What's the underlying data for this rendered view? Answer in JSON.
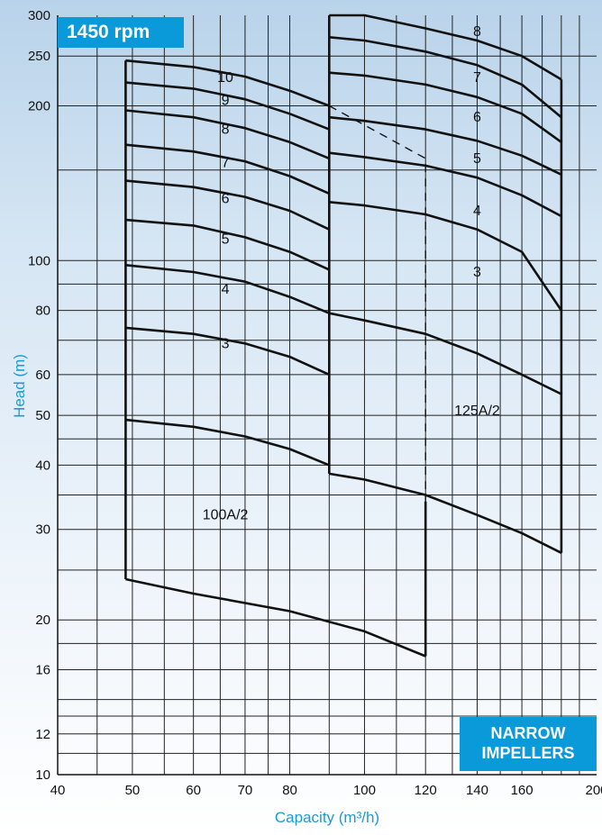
{
  "chart_data": {
    "type": "line",
    "title": "1450 rpm",
    "badge": "NARROW IMPELLERS",
    "xlabel": "Capacity  (m³/h)",
    "ylabel": "Head  (m)",
    "xscale": "log",
    "yscale": "log",
    "xlim": [
      40,
      200
    ],
    "ylim": [
      10,
      300
    ],
    "grid": true,
    "x_ticks": [
      40,
      50,
      60,
      70,
      80,
      100,
      120,
      140,
      160,
      200
    ],
    "y_ticks": [
      10,
      12,
      16,
      20,
      30,
      40,
      50,
      60,
      80,
      100,
      200,
      250,
      300
    ],
    "pumps": [
      {
        "name": "100A/2",
        "envelope": [
          [
            49,
            245
          ],
          [
            49,
            24
          ],
          [
            120,
            17
          ],
          [
            120,
            34
          ]
        ],
        "series": [
          {
            "name": "10",
            "points": [
              [
                49,
                245
              ],
              [
                60,
                238
              ],
              [
                70,
                228
              ],
              [
                80,
                214
              ],
              [
                90,
                200
              ]
            ]
          },
          {
            "name": "9",
            "points": [
              [
                49,
                222
              ],
              [
                60,
                216
              ],
              [
                70,
                206
              ],
              [
                80,
                193
              ],
              [
                90,
                180
              ]
            ]
          },
          {
            "name": "8",
            "points": [
              [
                49,
                196
              ],
              [
                60,
                190
              ],
              [
                70,
                181
              ],
              [
                80,
                170
              ],
              [
                90,
                158
              ]
            ]
          },
          {
            "name": "7",
            "points": [
              [
                49,
                168
              ],
              [
                60,
                163
              ],
              [
                70,
                156
              ],
              [
                80,
                146
              ],
              [
                90,
                135
              ]
            ]
          },
          {
            "name": "6",
            "points": [
              [
                49,
                143
              ],
              [
                60,
                139
              ],
              [
                70,
                133
              ],
              [
                80,
                125
              ],
              [
                90,
                115
              ]
            ]
          },
          {
            "name": "5",
            "points": [
              [
                49,
                120
              ],
              [
                60,
                117
              ],
              [
                70,
                111
              ],
              [
                80,
                104
              ],
              [
                90,
                96
              ]
            ]
          },
          {
            "name": "4",
            "points": [
              [
                49,
                98
              ],
              [
                60,
                95
              ],
              [
                70,
                91
              ],
              [
                80,
                85
              ],
              [
                90,
                79
              ]
            ]
          },
          {
            "name": "3",
            "points": [
              [
                49,
                74
              ],
              [
                60,
                72
              ],
              [
                70,
                69
              ],
              [
                80,
                65
              ],
              [
                90,
                60
              ]
            ]
          },
          {
            "name": "",
            "points": [
              [
                49,
                49
              ],
              [
                60,
                47.5
              ],
              [
                70,
                45.5
              ],
              [
                80,
                43
              ],
              [
                90,
                40
              ]
            ]
          },
          {
            "name": "",
            "points": [
              [
                49,
                24
              ],
              [
                60,
                22.5
              ],
              [
                80,
                20.8
              ],
              [
                100,
                19
              ],
              [
                120,
                17
              ]
            ]
          }
        ],
        "limit_line": [
          [
            90,
            200
          ],
          [
            120,
            158
          ],
          [
            120,
            34
          ]
        ]
      },
      {
        "name": "125A/2",
        "envelope": [
          [
            90,
            300
          ],
          [
            90,
            38.5
          ],
          [
            180,
            27
          ],
          [
            180,
            225
          ]
        ],
        "series": [
          {
            "name": "8",
            "points": [
              [
                90,
                300
              ],
              [
                100,
                300
              ],
              [
                120,
                283
              ],
              [
                140,
                268
              ],
              [
                160,
                250
              ],
              [
                180,
                225
              ]
            ]
          },
          {
            "name": "",
            "points": [
              [
                90,
                272
              ],
              [
                100,
                268
              ],
              [
                120,
                255
              ],
              [
                140,
                240
              ],
              [
                160,
                220
              ],
              [
                180,
                190
              ]
            ]
          },
          {
            "name": "7",
            "points": [
              [
                90,
                232
              ],
              [
                100,
                229
              ],
              [
                120,
                220
              ],
              [
                140,
                208
              ],
              [
                160,
                193
              ],
              [
                180,
                170
              ]
            ]
          },
          {
            "name": "6",
            "points": [
              [
                90,
                190
              ],
              [
                100,
                187
              ],
              [
                120,
                180
              ],
              [
                140,
                171
              ],
              [
                160,
                160
              ],
              [
                180,
                147
              ]
            ]
          },
          {
            "name": "5",
            "points": [
              [
                90,
                162
              ],
              [
                100,
                159
              ],
              [
                120,
                153
              ],
              [
                140,
                145
              ],
              [
                160,
                134
              ],
              [
                180,
                122
              ]
            ]
          },
          {
            "name": "4",
            "points": [
              [
                90,
                130
              ],
              [
                100,
                128
              ],
              [
                120,
                123
              ],
              [
                140,
                115
              ],
              [
                160,
                104
              ],
              [
                180,
                80
              ]
            ]
          },
          {
            "name": "3",
            "points": [
              [
                90,
                79
              ],
              [
                100,
                76.5
              ],
              [
                120,
                72
              ],
              [
                140,
                66
              ],
              [
                160,
                60
              ],
              [
                180,
                55
              ]
            ]
          },
          {
            "name": "",
            "points": [
              [
                90,
                38.5
              ],
              [
                100,
                37.5
              ],
              [
                120,
                35
              ],
              [
                140,
                32
              ],
              [
                160,
                29.5
              ],
              [
                180,
                27
              ]
            ]
          }
        ]
      }
    ],
    "labels": [
      {
        "text": "10",
        "x": 66,
        "y": 227
      },
      {
        "text": "9",
        "x": 66,
        "y": 205
      },
      {
        "text": "8",
        "x": 66,
        "y": 180
      },
      {
        "text": "7",
        "x": 66,
        "y": 155
      },
      {
        "text": "6",
        "x": 66,
        "y": 132
      },
      {
        "text": "5",
        "x": 66,
        "y": 110
      },
      {
        "text": "4",
        "x": 66,
        "y": 88
      },
      {
        "text": "3",
        "x": 66,
        "y": 69
      },
      {
        "text": "100A/2",
        "x": 66,
        "y": 32
      },
      {
        "text": "8",
        "x": 140,
        "y": 279
      },
      {
        "text": "7",
        "x": 140,
        "y": 227
      },
      {
        "text": "6",
        "x": 140,
        "y": 190
      },
      {
        "text": "5",
        "x": 140,
        "y": 158
      },
      {
        "text": "4",
        "x": 140,
        "y": 125
      },
      {
        "text": "3",
        "x": 140,
        "y": 95
      },
      {
        "text": "125A/2",
        "x": 140,
        "y": 51
      }
    ]
  }
}
